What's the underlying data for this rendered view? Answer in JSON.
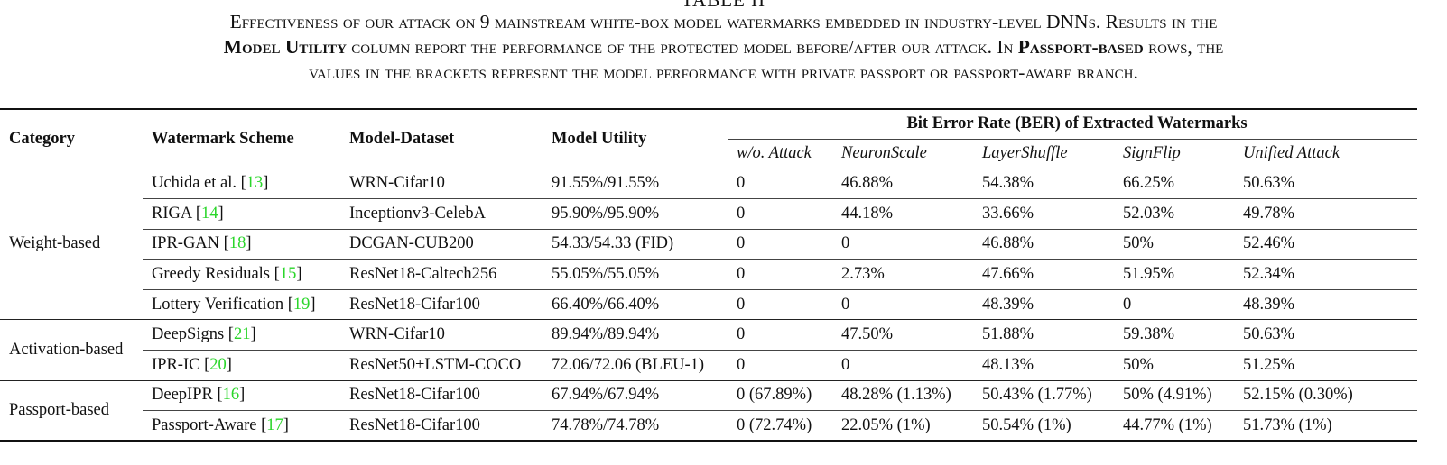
{
  "table_label": "TABLE II",
  "caption": {
    "line1_prefix": "Effectiveness of our attack on 9 mainstream white-box model watermarks embedded in industry-level DNNs. Results in the",
    "line2_bold1": "Model Utility",
    "line2_mid": "column report the performance of the protected model before/after our attack. In",
    "line2_bold2": "Passport-based",
    "line2_suffix": "rows, the",
    "line3": "values in the brackets represent the model performance with private passport or passport-aware branch."
  },
  "headers": {
    "category": "Category",
    "scheme": "Watermark Scheme",
    "model_dataset": "Model-Dataset",
    "utility": "Model Utility",
    "ber_group": "Bit Error Rate (BER) of Extracted Watermarks",
    "attacks": [
      "w/o. Attack",
      "NeuronScale",
      "LayerShuffle",
      "SignFlip",
      "Unified Attack"
    ]
  },
  "groups": [
    {
      "category": "Weight-based",
      "rows": [
        {
          "scheme": "Uchida et al.",
          "cite": "13",
          "model": "WRN-Cifar10",
          "utility": "91.55%/91.55%",
          "ber": [
            "0",
            "46.88%",
            "54.38%",
            "66.25%",
            "50.63%"
          ]
        },
        {
          "scheme": "RIGA",
          "cite": "14",
          "model": "Inceptionv3-CelebA",
          "utility": "95.90%/95.90%",
          "ber": [
            "0",
            "44.18%",
            "33.66%",
            "52.03%",
            "49.78%"
          ]
        },
        {
          "scheme": "IPR-GAN",
          "cite": "18",
          "model": "DCGAN-CUB200",
          "utility": "54.33/54.33 (FID)",
          "ber": [
            "0",
            "0",
            "46.88%",
            "50%",
            "52.46%"
          ]
        },
        {
          "scheme": "Greedy Residuals",
          "cite": "15",
          "model": "ResNet18-Caltech256",
          "utility": "55.05%/55.05%",
          "ber": [
            "0",
            "2.73%",
            "47.66%",
            "51.95%",
            "52.34%"
          ]
        },
        {
          "scheme": "Lottery Verification",
          "cite": "19",
          "model": "ResNet18-Cifar100",
          "utility": "66.40%/66.40%",
          "ber": [
            "0",
            "0",
            "48.39%",
            "0",
            "48.39%"
          ]
        }
      ]
    },
    {
      "category": "Activation-based",
      "rows": [
        {
          "scheme": "DeepSigns",
          "cite": "21",
          "model": "WRN-Cifar10",
          "utility": "89.94%/89.94%",
          "ber": [
            "0",
            "47.50%",
            "51.88%",
            "59.38%",
            "50.63%"
          ]
        },
        {
          "scheme": "IPR-IC",
          "cite": "20",
          "model": "ResNet50+LSTM-COCO",
          "utility": "72.06/72.06 (BLEU-1)",
          "ber": [
            "0",
            "0",
            "48.13%",
            "50%",
            "51.25%"
          ]
        }
      ]
    },
    {
      "category": "Passport-based",
      "rows": [
        {
          "scheme": "DeepIPR",
          "cite": "16",
          "model": "ResNet18-Cifar100",
          "utility": "67.94%/67.94%",
          "ber": [
            "0 (67.89%)",
            "48.28% (1.13%)",
            "50.43% (1.77%)",
            "50% (4.91%)",
            "52.15% (0.30%)"
          ]
        },
        {
          "scheme": "Passport-Aware",
          "cite": "17",
          "model": "ResNet18-Cifar100",
          "utility": "74.78%/74.78%",
          "ber": [
            "0 (72.74%)",
            "22.05% (1%)",
            "50.54% (1%)",
            "44.77% (1%)",
            "51.73% (1%)"
          ]
        }
      ]
    }
  ],
  "colors": {
    "citation": "#2bd62b",
    "text": "#111111"
  }
}
